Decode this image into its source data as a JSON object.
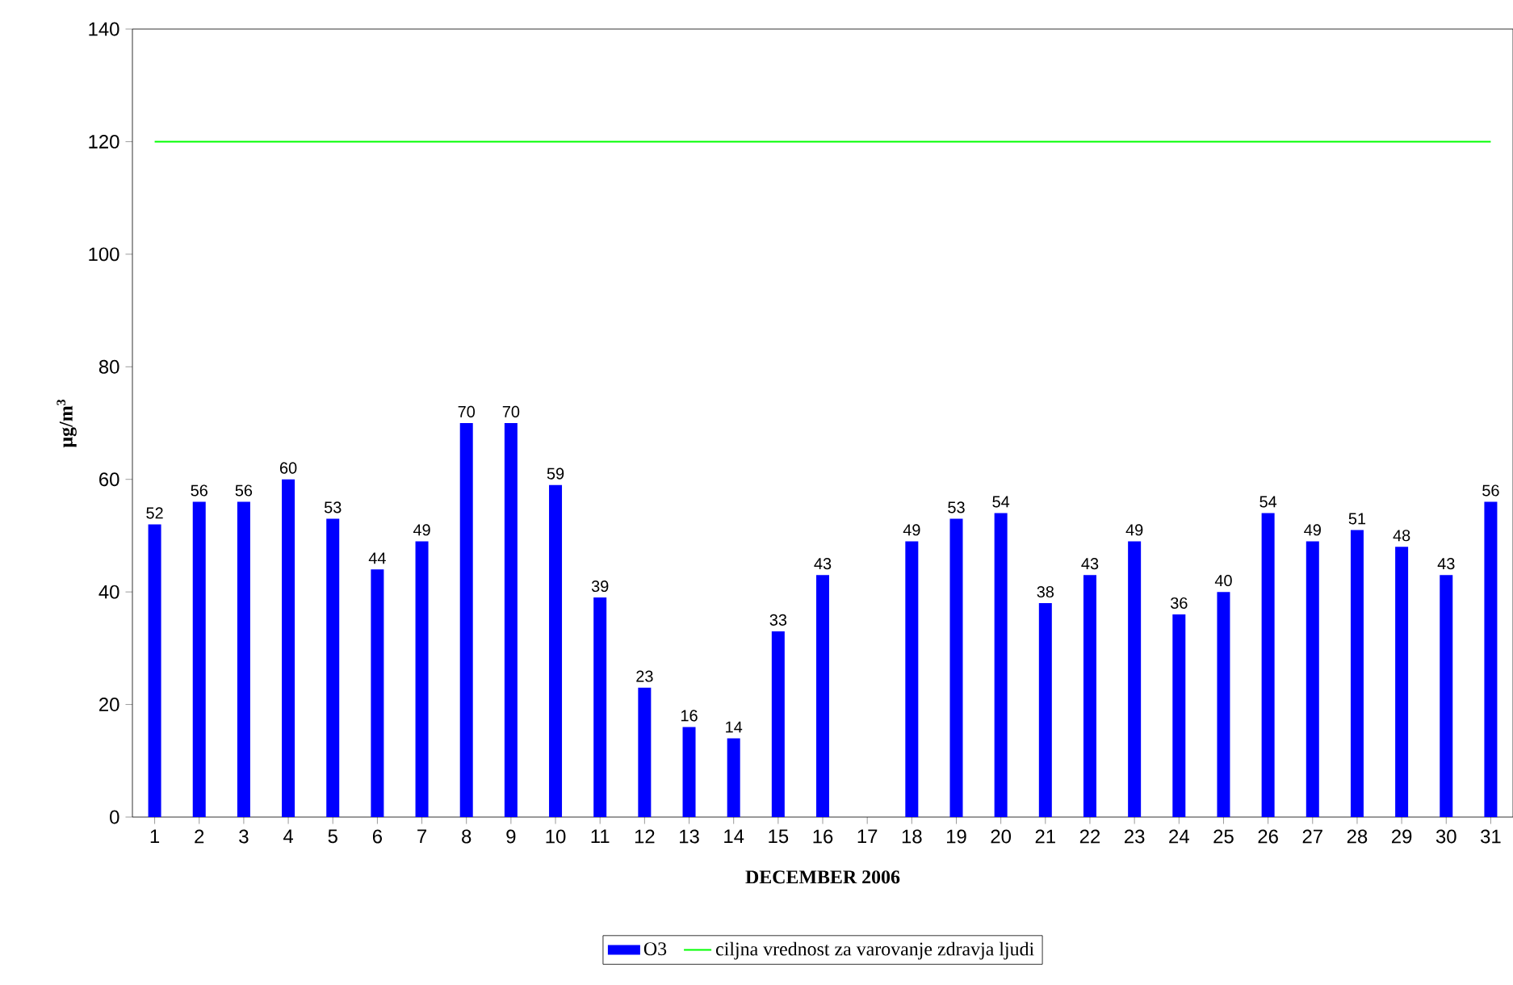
{
  "chart_data": {
    "type": "bar",
    "xlabel": "DECEMBER 2006",
    "ylabel": "µg/m$^{3}$",
    "categories": [
      "1",
      "2",
      "3",
      "4",
      "5",
      "6",
      "7",
      "8",
      "9",
      "10",
      "11",
      "12",
      "13",
      "14",
      "15",
      "16",
      "17",
      "18",
      "19",
      "20",
      "21",
      "22",
      "23",
      "24",
      "25",
      "26",
      "27",
      "28",
      "29",
      "30",
      "31"
    ],
    "series": [
      {
        "name": "O3",
        "color": "#0000ff",
        "data_labels": true,
        "values": [
          52,
          56,
          56,
          60,
          53,
          44,
          49,
          70,
          70,
          59,
          39,
          23,
          16,
          14,
          33,
          43,
          null,
          49,
          53,
          54,
          38,
          43,
          49,
          36,
          40,
          54,
          49,
          51,
          48,
          43,
          56
        ]
      },
      {
        "name": "ciljna vrednost za varovanje zdravja ljudi",
        "type": "line",
        "color": "#00ff00",
        "values": [
          120,
          120,
          120,
          120,
          120,
          120,
          120,
          120,
          120,
          120,
          120,
          120,
          120,
          120,
          120,
          120,
          120,
          120,
          120,
          120,
          120,
          120,
          120,
          120,
          120,
          120,
          120,
          120,
          120,
          120,
          120
        ]
      }
    ],
    "ylim": [
      0,
      140
    ],
    "yticks": [
      0,
      20,
      40,
      60,
      80,
      100,
      120,
      140
    ],
    "legend": "bottom"
  }
}
